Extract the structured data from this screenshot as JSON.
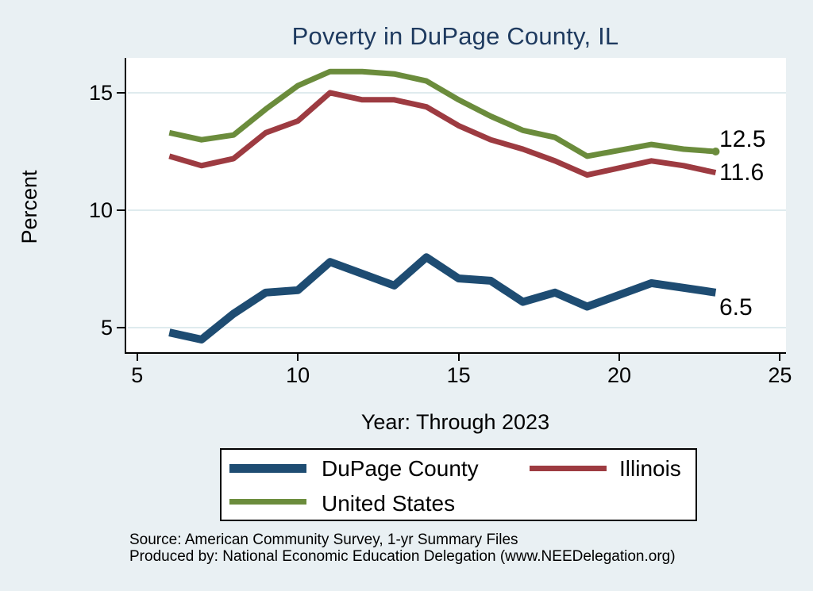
{
  "title": "Poverty in DuPage County, IL",
  "axes": {
    "y_label": "Percent",
    "x_label": "Year: Through 2023",
    "y_ticks": [
      5,
      10,
      15
    ],
    "x_ticks": [
      5,
      10,
      15,
      20,
      25
    ]
  },
  "chart_data": {
    "type": "line",
    "title": "Poverty in DuPage County, IL",
    "xlabel": "Year: Through 2023",
    "ylabel": "Percent",
    "x": [
      6,
      7,
      8,
      9,
      10,
      11,
      12,
      13,
      14,
      15,
      16,
      17,
      18,
      19,
      20,
      21,
      22,
      23
    ],
    "xlim": [
      5,
      25
    ],
    "ylim": [
      5,
      15
    ],
    "grid": "horizontal-only",
    "legend_position": "bottom",
    "series": [
      {
        "name": "DuPage County",
        "color": "#1e4c72",
        "values": [
          4.8,
          4.5,
          5.6,
          6.5,
          6.6,
          7.8,
          7.3,
          6.8,
          8.0,
          7.1,
          7.0,
          6.1,
          6.5,
          5.9,
          null,
          6.9,
          6.7,
          6.5
        ],
        "end_label": "6.5",
        "end_dot": false
      },
      {
        "name": "Illinois",
        "color": "#9d3b41",
        "values": [
          12.3,
          11.9,
          12.2,
          13.3,
          13.8,
          15.0,
          14.7,
          14.7,
          14.4,
          13.6,
          13.0,
          12.6,
          12.1,
          11.5,
          null,
          12.1,
          11.9,
          11.6
        ],
        "end_label": "11.6",
        "end_dot": false
      },
      {
        "name": "United States",
        "color": "#6b8c3c",
        "values": [
          13.3,
          13.0,
          13.2,
          14.3,
          15.3,
          15.9,
          15.9,
          15.8,
          15.5,
          14.7,
          14.0,
          13.4,
          13.1,
          12.3,
          null,
          12.8,
          12.6,
          12.5
        ],
        "end_label": "12.5",
        "end_dot": true
      }
    ]
  },
  "footer": {
    "source": "Source: American Community Survey, 1-yr Summary Files",
    "producer": "Produced by: National Economic Education Delegation (www.NEEDelegation.org)"
  },
  "colors": {
    "background": "#e9f0f3",
    "plot_background": "#ffffff",
    "title": "#1e3a5f",
    "gridline": "#dfebee",
    "axis": "#000000"
  }
}
